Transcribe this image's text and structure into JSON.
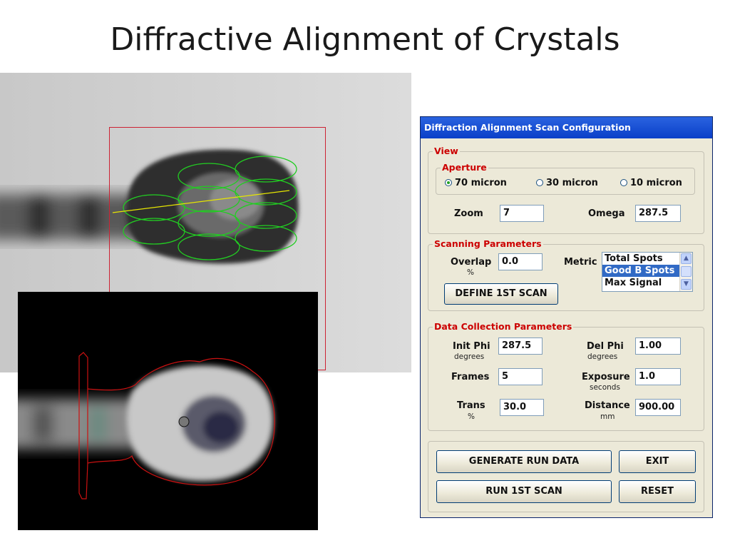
{
  "slide": {
    "title": "Diffractive Alignment of Crystals"
  },
  "dialog": {
    "title": "Diffraction Alignment Scan Configuration",
    "view": {
      "legend": "View",
      "aperture": {
        "legend": "Aperture",
        "options": [
          "70 micron",
          "30 micron",
          "10 micron"
        ],
        "selected": "70 micron"
      },
      "zoom_label": "Zoom",
      "zoom_value": "7",
      "omega_label": "Omega",
      "omega_value": "287.5"
    },
    "scanning": {
      "legend": "Scanning Parameters",
      "overlap_label": "Overlap",
      "overlap_unit": "%",
      "overlap_value": "0.0",
      "metric_label": "Metric",
      "metric_options": [
        "Total Spots",
        "Good B Spots",
        "Max Signal"
      ],
      "metric_selected": "Good B Spots",
      "define_button": "DEFINE 1ST SCAN"
    },
    "data_collection": {
      "legend": "Data Collection Parameters",
      "init_phi_label": "Init Phi",
      "init_phi_unit": "degrees",
      "init_phi_value": "287.5",
      "del_phi_label": "Del Phi",
      "del_phi_unit": "degrees",
      "del_phi_value": "1.00",
      "frames_label": "Frames",
      "frames_value": "5",
      "exposure_label": "Exposure",
      "exposure_unit": "seconds",
      "exposure_value": "1.0",
      "trans_label": "Trans",
      "trans_unit": "%",
      "trans_value": "30.0",
      "distance_label": "Distance",
      "distance_unit": "mm",
      "distance_value": "900.00"
    },
    "buttons": {
      "generate": "GENERATE RUN DATA",
      "exit": "EXIT",
      "run": "RUN 1ST SCAN",
      "reset": "RESET"
    }
  },
  "colors": {
    "legend_red": "#cc0000",
    "titlebar_blue": "#0a3fc8",
    "selection_blue": "#316ac5",
    "scan_green": "#22cc22",
    "outline_red": "#cc1111"
  }
}
